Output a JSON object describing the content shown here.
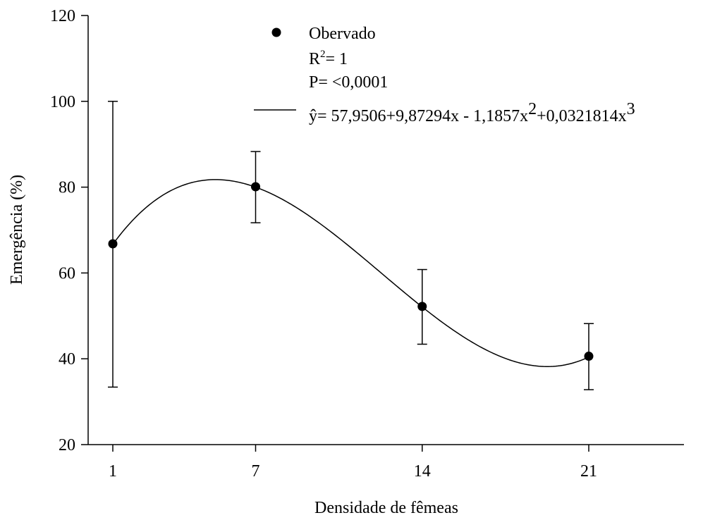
{
  "chart_data": {
    "type": "scatter",
    "title": "",
    "xlabel": "Densidade de fêmeas",
    "ylabel": "Emergência (%)",
    "xlim": [
      0,
      24
    ],
    "ylim": [
      20,
      120
    ],
    "x_ticks": [
      1,
      7,
      14,
      21
    ],
    "y_ticks": [
      20,
      40,
      60,
      80,
      100,
      120
    ],
    "grid": false,
    "legend_position": "top",
    "series": [
      {
        "name": "Obervado",
        "marker": "circle",
        "x": [
          1,
          7,
          14,
          21
        ],
        "y": [
          66.8,
          80.1,
          52.2,
          40.6
        ],
        "error_low": [
          33.4,
          71.7,
          43.4,
          32.8
        ],
        "error_high": [
          100,
          88.3,
          60.8,
          48.2
        ]
      }
    ],
    "fit": {
      "type": "cubic",
      "coefficients": [
        57.9506,
        9.87294,
        -1.1857,
        0.0321814
      ],
      "x_range": [
        1,
        21
      ]
    },
    "legend": {
      "marker_label": "Obervado",
      "r2_base": "R",
      "r2_exp": "2",
      "r2_rest": "= 1",
      "p_text": "P= <0,0001",
      "eq_hat": "ŷ",
      "eq_part1": "= 57,9506+9,87294x - 1,1857x",
      "eq_exp1": "2",
      "eq_part2": "+0,0321814x",
      "eq_exp2": "3"
    }
  }
}
